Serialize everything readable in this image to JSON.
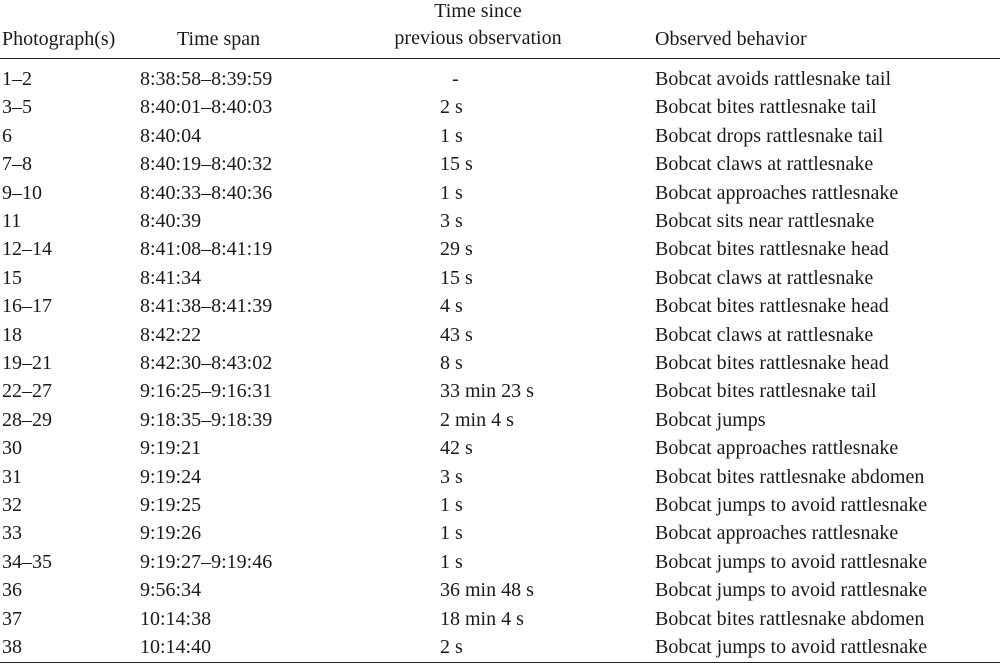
{
  "table": {
    "header": [
      "Photograph(s)",
      "Time span",
      "Time since\nprevious observation",
      "Observed behavior"
    ],
    "rows": [
      [
        "1–2",
        "8:38:58–8:39:59",
        "-",
        "Bobcat avoids rattlesnake tail"
      ],
      [
        "3–5",
        "8:40:01–8:40:03",
        "2 s",
        "Bobcat bites rattlesnake tail"
      ],
      [
        "6",
        "8:40:04",
        "1 s",
        "Bobcat drops rattlesnake tail"
      ],
      [
        "7–8",
        "8:40:19–8:40:32",
        "15 s",
        "Bobcat claws at rattlesnake"
      ],
      [
        "9–10",
        "8:40:33–8:40:36",
        "1 s",
        "Bobcat approaches rattlesnake"
      ],
      [
        "11",
        "8:40:39",
        "3 s",
        "Bobcat sits near rattlesnake"
      ],
      [
        "12–14",
        "8:41:08–8:41:19",
        "29 s",
        "Bobcat bites rattlesnake head"
      ],
      [
        "15",
        "8:41:34",
        "15 s",
        "Bobcat claws at rattlesnake"
      ],
      [
        "16–17",
        "8:41:38–8:41:39",
        "4 s",
        "Bobcat bites rattlesnake head"
      ],
      [
        "18",
        "8:42:22",
        "43 s",
        "Bobcat claws at rattlesnake"
      ],
      [
        "19–21",
        "8:42:30–8:43:02",
        "8 s",
        "Bobcat bites rattlesnake head"
      ],
      [
        "22–27",
        "9:16:25–9:16:31",
        "33 min 23 s",
        "Bobcat bites rattlesnake tail"
      ],
      [
        "28–29",
        "9:18:35–9:18:39",
        "2 min 4 s",
        "Bobcat jumps"
      ],
      [
        "30",
        "9:19:21",
        "42 s",
        "Bobcat approaches rattlesnake"
      ],
      [
        "31",
        "9:19:24",
        "3 s",
        "Bobcat bites rattlesnake abdomen"
      ],
      [
        "32",
        "9:19:25",
        "1 s",
        "Bobcat jumps to avoid rattlesnake"
      ],
      [
        "33",
        "9:19:26",
        "1 s",
        "Bobcat approaches rattlesnake"
      ],
      [
        "34–35",
        "9:19:27–9:19:46",
        "1 s",
        "Bobcat jumps to avoid rattlesnake"
      ],
      [
        "36",
        "9:56:34",
        "36 min 48 s",
        "Bobcat jumps to avoid rattlesnake"
      ],
      [
        "37",
        "10:14:38",
        "18 min 4 s",
        "Bobcat bites rattlesnake abdomen"
      ],
      [
        "38",
        "10:14:40",
        "2 s",
        "Bobcat jumps to avoid rattlesnake"
      ]
    ]
  }
}
